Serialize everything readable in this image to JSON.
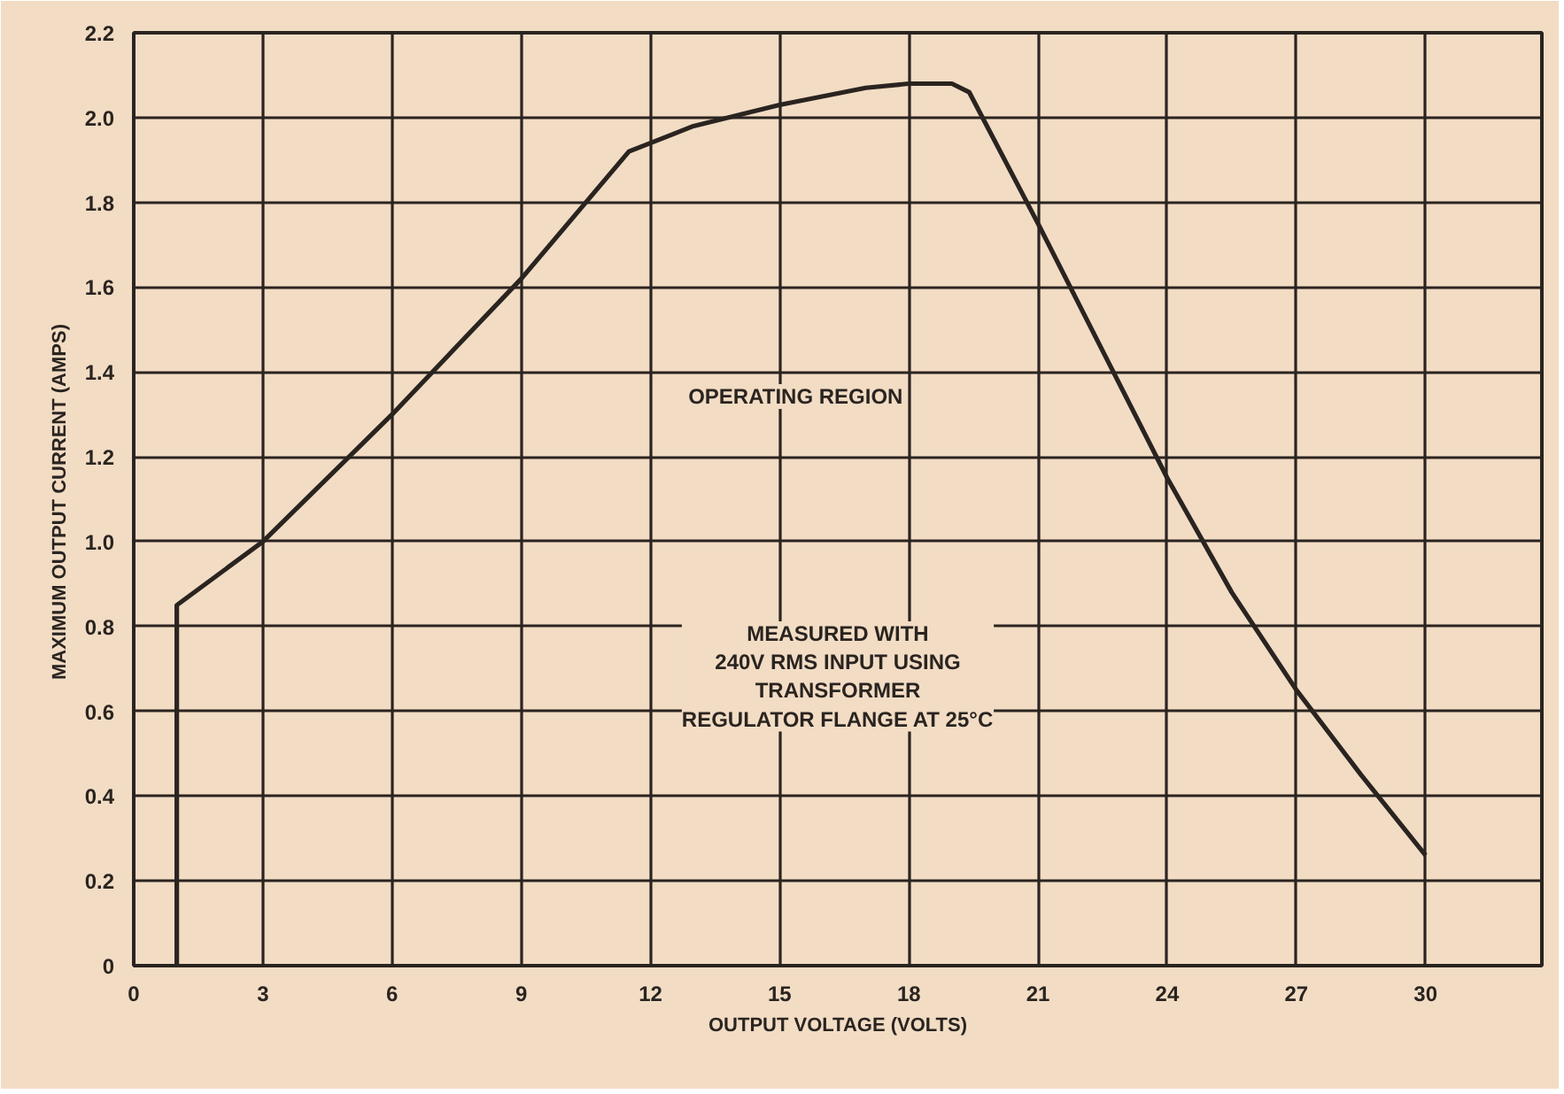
{
  "chart_data": {
    "type": "line",
    "xlabel": "OUTPUT VOLTAGE (VOLTS)",
    "ylabel": "MAXIMUM OUTPUT CURRENT  (AMPS)",
    "annotations": [
      "OPERATING REGION",
      "MEASURED WITH\n240V RMS INPUT USING\nTRANSFORMER\nREGULATOR FLANGE AT 25°C"
    ],
    "series": [
      {
        "color": "#2a2420",
        "x": [
          1,
          1,
          3,
          6,
          9,
          10.5,
          11.5,
          13,
          15,
          17,
          18,
          19,
          19.4,
          21,
          22.5,
          24,
          25.5,
          27,
          28.5,
          30
        ],
        "values": [
          0,
          0.85,
          1.0,
          1.3,
          1.62,
          1.8,
          1.92,
          1.98,
          2.03,
          2.07,
          2.08,
          2.08,
          2.06,
          1.75,
          1.45,
          1.15,
          0.88,
          0.65,
          0.45,
          0.26
        ]
      }
    ],
    "xlim": [
      0,
      32.7
    ],
    "ylim": [
      0,
      2.2
    ],
    "xticks": [
      0,
      3,
      6,
      9,
      12,
      15,
      18,
      21,
      24,
      27,
      30
    ],
    "yticks": [
      0,
      0.2,
      0.4,
      0.6,
      0.8,
      {
        "value": 1.0,
        "label": "1.0"
      },
      1.2,
      1.4,
      1.6,
      1.8,
      {
        "value": 2.0,
        "label": "2.0"
      },
      2.2
    ],
    "grid": true,
    "line_style": "solid"
  }
}
